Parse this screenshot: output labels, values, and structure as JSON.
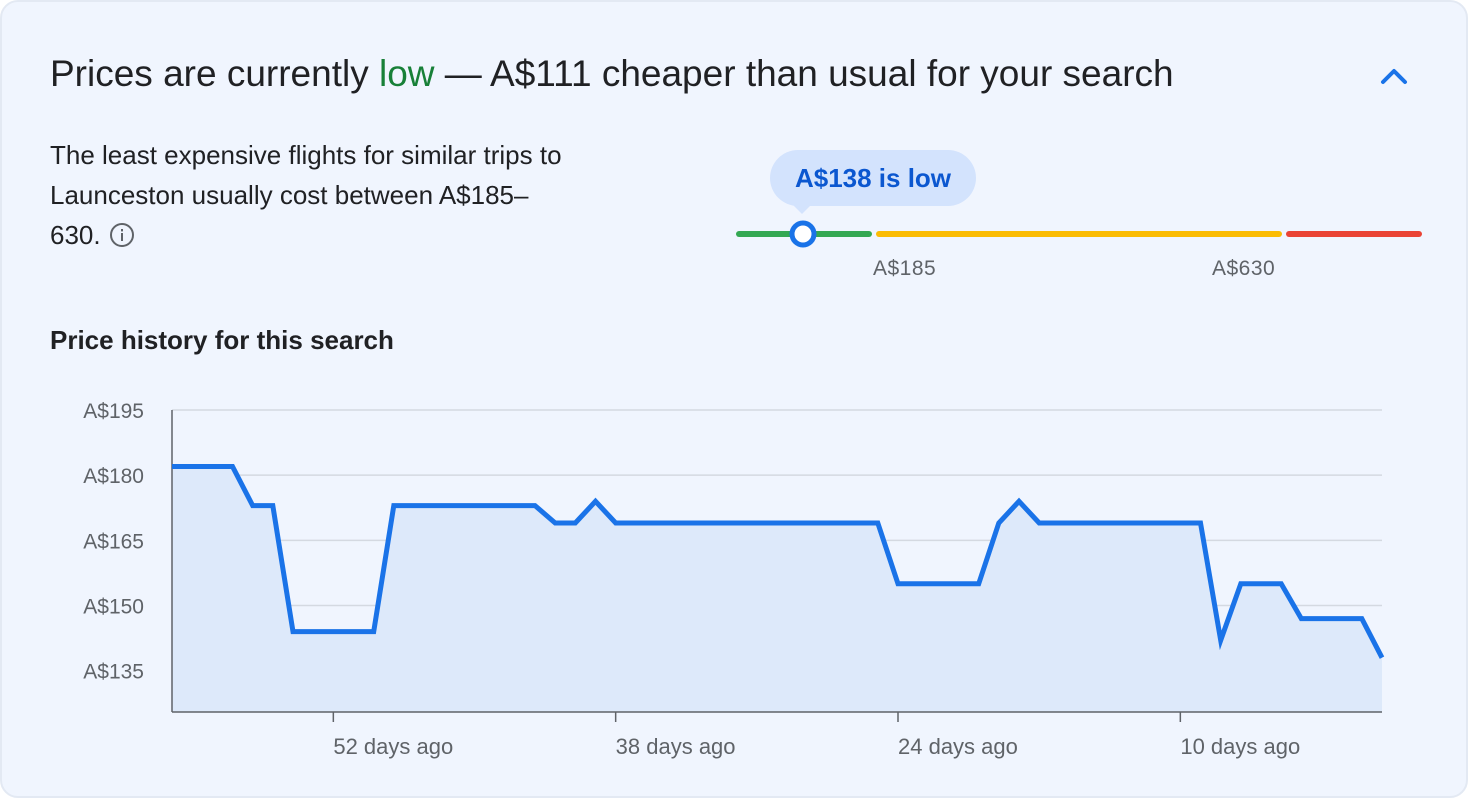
{
  "headline": {
    "prefix": "Prices are currently ",
    "status": "low",
    "suffix": " — A$111 cheaper than usual for your search"
  },
  "description": "The least expensive flights for similar trips to Launceston usually cost between A$185–630.",
  "gauge": {
    "bubble_text": "A$138 is low",
    "current_price": 138,
    "low_threshold_label": "A$185",
    "high_threshold_label": "A$630",
    "colors": {
      "low": "#34a853",
      "typical": "#fbbc04",
      "high": "#ea4335",
      "marker": "#1a73e8"
    }
  },
  "history": {
    "title": "Price history for this search"
  },
  "chart_data": {
    "type": "line",
    "title": "Price history for this search",
    "xlabel": "",
    "ylabel": "",
    "x_axis": "days ago",
    "xlim": [
      60,
      0
    ],
    "ylim": [
      195,
      126
    ],
    "y_ticks": [
      195,
      180,
      165,
      150,
      135
    ],
    "y_tick_labels": [
      "A$195",
      "A$180",
      "A$165",
      "A$150",
      "A$135"
    ],
    "x_ticks": [
      52,
      38,
      24,
      10
    ],
    "x_tick_labels": [
      "52 days ago",
      "38 days ago",
      "24 days ago",
      "10 days ago"
    ],
    "grid": true,
    "legend": "none",
    "line_color": "#1a73e8",
    "fill_color": "#dde9fa",
    "series": [
      {
        "x": [
          60,
          57,
          56,
          55,
          54,
          53,
          50,
          49,
          42,
          41,
          40,
          39,
          38,
          37,
          25,
          24,
          21,
          20,
          19,
          18,
          17,
          10,
          9,
          8,
          7,
          6,
          5,
          4,
          3,
          2,
          1,
          0
        ],
        "values": [
          182,
          182,
          173,
          173,
          144,
          144,
          144,
          173,
          173,
          169,
          169,
          174,
          169,
          169,
          169,
          155,
          155,
          155,
          169,
          174,
          169,
          169,
          169,
          142,
          155,
          155,
          155,
          147,
          147,
          147,
          147,
          138
        ]
      }
    ]
  }
}
